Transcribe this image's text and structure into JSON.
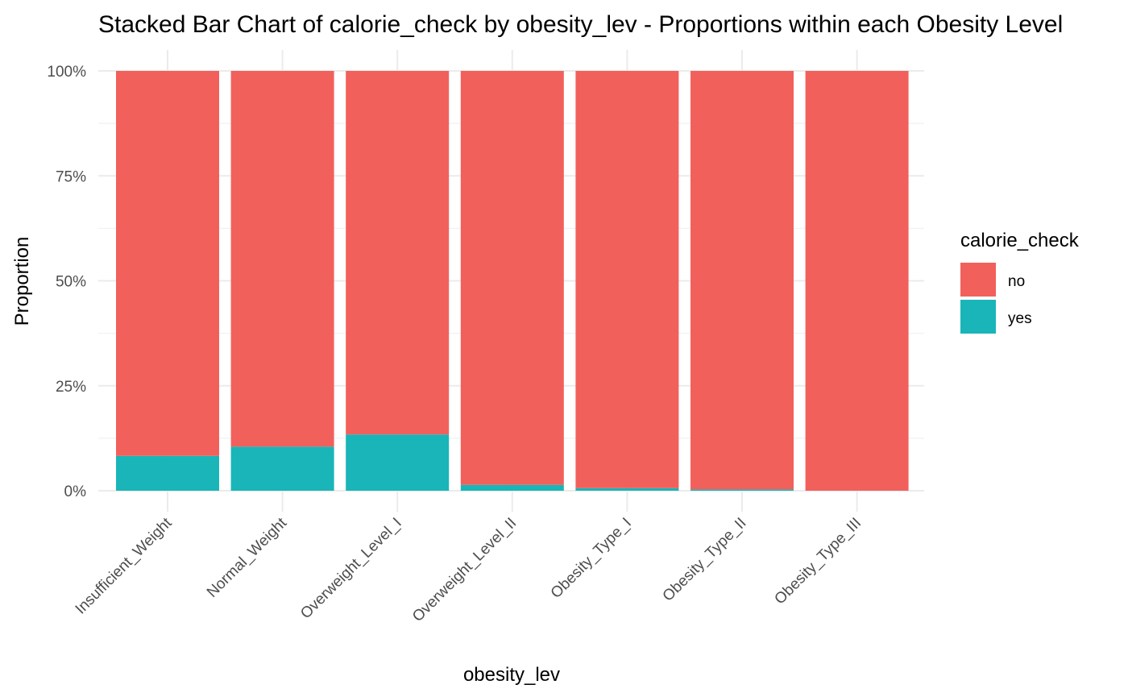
{
  "chart_data": {
    "type": "bar",
    "stacked": true,
    "title": "Stacked Bar Chart of calorie_check by obesity_lev - Proportions within each Obesity Level",
    "xlabel": "obesity_lev",
    "ylabel": "Proportion",
    "ylim": [
      0,
      1
    ],
    "y_ticks": [
      {
        "value": 0,
        "label": "0%"
      },
      {
        "value": 0.25,
        "label": "25%"
      },
      {
        "value": 0.5,
        "label": "50%"
      },
      {
        "value": 0.75,
        "label": "75%"
      },
      {
        "value": 1,
        "label": "100%"
      }
    ],
    "categories": [
      "Insufficient_Weight",
      "Normal_Weight",
      "Overweight_Level_I",
      "Overweight_Level_II",
      "Obesity_Type_I",
      "Obesity_Type_II",
      "Obesity_Type_III"
    ],
    "series": [
      {
        "name": "yes",
        "color": "#19b5b8",
        "values": [
          0.083,
          0.105,
          0.134,
          0.014,
          0.006,
          0.003,
          0.0
        ]
      },
      {
        "name": "no",
        "color": "#f2605c",
        "values": [
          0.917,
          0.895,
          0.866,
          0.986,
          0.994,
          0.997,
          1.0
        ]
      }
    ],
    "legend": {
      "title": "calorie_check",
      "position": "right",
      "entries": [
        {
          "label": "no",
          "color": "#f2605c"
        },
        {
          "label": "yes",
          "color": "#19b5b8"
        }
      ]
    },
    "grid": true
  }
}
